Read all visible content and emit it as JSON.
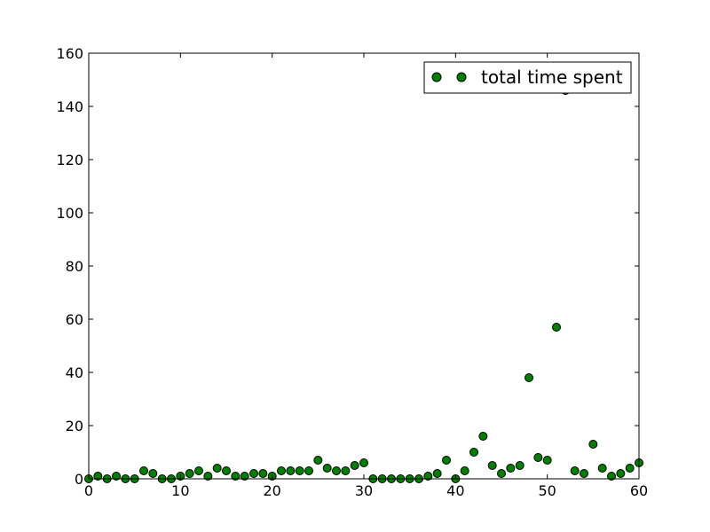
{
  "chart_data": {
    "type": "scatter",
    "title": "",
    "xlabel": "",
    "ylabel": "",
    "xlim": [
      0,
      60
    ],
    "ylim": [
      0,
      160
    ],
    "x_ticks": [
      0,
      10,
      20,
      30,
      40,
      50,
      60
    ],
    "y_ticks": [
      0,
      20,
      40,
      60,
      80,
      100,
      120,
      140,
      160
    ],
    "x_tick_labels": [
      "0",
      "10",
      "20",
      "30",
      "40",
      "50",
      "60"
    ],
    "y_tick_labels": [
      "0",
      "20",
      "40",
      "60",
      "80",
      "100",
      "120",
      "140",
      "160"
    ],
    "grid": false,
    "legend_position": "top-right",
    "marker_color": "#008000",
    "marker_edge_color": "#000000",
    "series": [
      {
        "name": "total time spent",
        "color": "#008000",
        "x": [
          0,
          1,
          2,
          3,
          4,
          5,
          6,
          7,
          8,
          9,
          10,
          11,
          12,
          13,
          14,
          15,
          16,
          17,
          18,
          19,
          20,
          21,
          22,
          23,
          24,
          25,
          26,
          27,
          28,
          29,
          30,
          31,
          32,
          33,
          34,
          35,
          36,
          37,
          38,
          39,
          40,
          41,
          42,
          43,
          44,
          45,
          46,
          47,
          48,
          49,
          50,
          51,
          52,
          53,
          54,
          55,
          56,
          57,
          58,
          59,
          60
        ],
        "y": [
          0,
          1,
          0,
          1,
          0,
          0,
          3,
          2,
          0,
          0,
          1,
          2,
          3,
          1,
          4,
          3,
          1,
          1,
          2,
          2,
          1,
          3,
          3,
          3,
          3,
          7,
          4,
          3,
          3,
          5,
          6,
          0,
          0,
          0,
          0,
          0,
          0,
          1,
          2,
          7,
          0,
          3,
          10,
          16,
          5,
          2,
          4,
          5,
          38,
          8,
          7,
          57,
          146,
          3,
          2,
          13,
          4,
          1,
          2,
          4,
          6
        ]
      }
    ]
  }
}
